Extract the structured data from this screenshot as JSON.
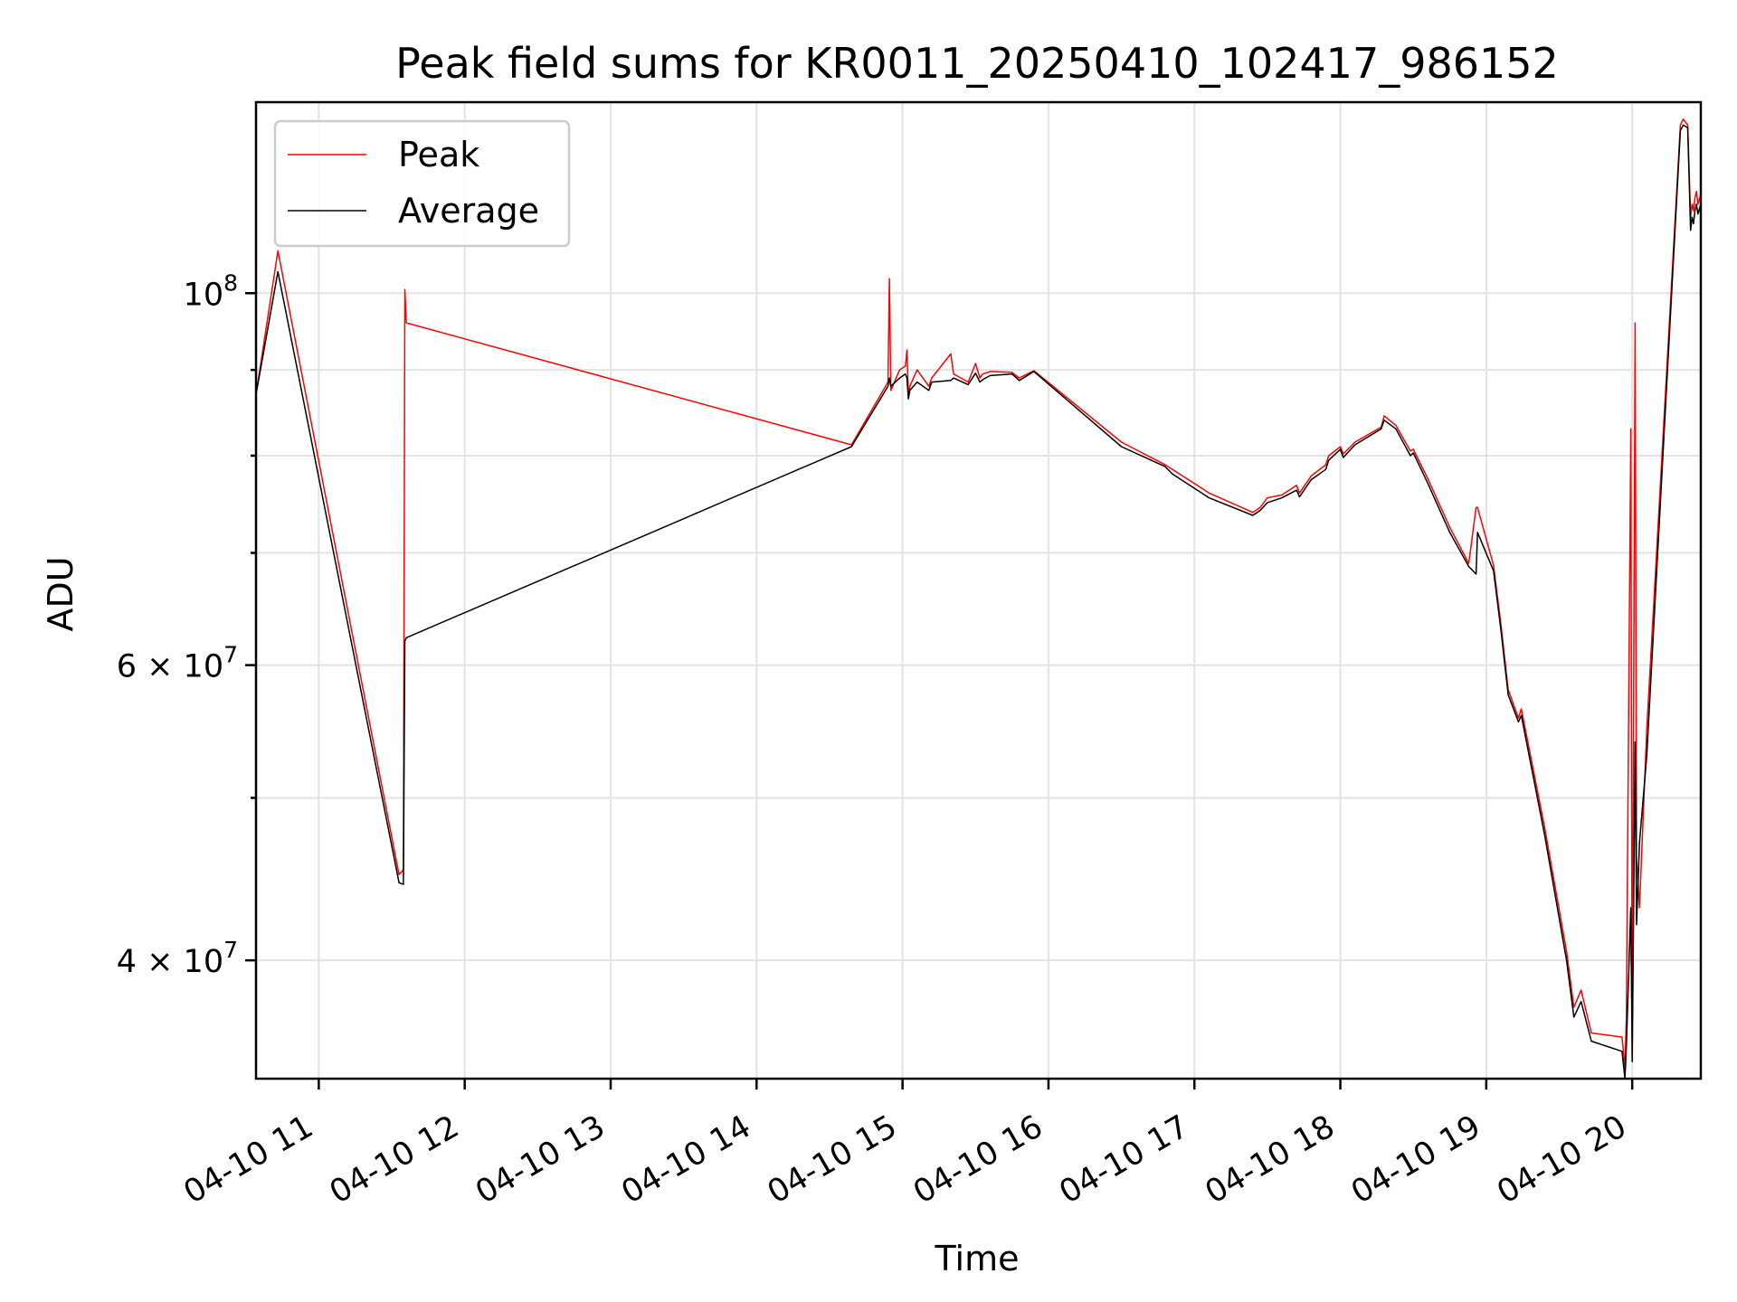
{
  "chart_data": {
    "type": "line",
    "title": "Peak field sums for KR0011_20250410_102417_986152",
    "xlabel": "Time",
    "ylabel": "ADU",
    "yscale": "log",
    "x_unit": "hours (clock time on 2025-04-10)",
    "xlim": [
      10.57,
      20.47
    ],
    "ylim": [
      34000000,
      130000000
    ],
    "grid": true,
    "legend_position": "upper left",
    "x_ticks": [
      {
        "value": 11,
        "label": "04-10 11"
      },
      {
        "value": 12,
        "label": "04-10 12"
      },
      {
        "value": 13,
        "label": "04-10 13"
      },
      {
        "value": 14,
        "label": "04-10 14"
      },
      {
        "value": 15,
        "label": "04-10 15"
      },
      {
        "value": 16,
        "label": "04-10 16"
      },
      {
        "value": 17,
        "label": "04-10 17"
      },
      {
        "value": 18,
        "label": "04-10 18"
      },
      {
        "value": 19,
        "label": "04-10 19"
      },
      {
        "value": 20,
        "label": "04-10 20"
      }
    ],
    "y_major_ticks": [
      {
        "value": 40000000,
        "base": "4 × 10",
        "exp": "7"
      },
      {
        "value": 60000000,
        "base": "6 × 10",
        "exp": "7"
      },
      {
        "value": 100000000,
        "base": "10",
        "exp": "8"
      }
    ],
    "y_minor_grid": [
      50000000,
      70000000,
      80000000,
      90000000
    ],
    "series": [
      {
        "name": "Peak",
        "color": "#ff0000",
        "x": [
          10.57,
          10.72,
          11.55,
          11.58,
          11.59,
          11.6,
          14.65,
          14.9,
          14.91,
          14.92,
          14.98,
          15.02,
          15.03,
          15.04,
          15.05,
          15.1,
          15.18,
          15.2,
          15.33,
          15.35,
          15.45,
          15.5,
          15.53,
          15.55,
          15.6,
          15.75,
          15.8,
          15.9,
          16.5,
          16.8,
          16.85,
          17.0,
          17.1,
          17.4,
          17.45,
          17.5,
          17.6,
          17.7,
          17.72,
          17.8,
          17.9,
          17.92,
          18.0,
          18.02,
          18.1,
          18.28,
          18.3,
          18.38,
          18.48,
          18.5,
          18.6,
          18.75,
          18.88,
          18.93,
          18.94,
          19.05,
          19.1,
          19.15,
          19.22,
          19.24,
          19.4,
          19.55,
          19.6,
          19.65,
          19.72,
          19.93,
          19.95,
          19.96,
          19.99,
          20.0,
          20.02,
          20.03,
          20.05,
          20.1,
          20.33,
          20.35,
          20.38,
          20.4,
          20.41,
          20.42,
          20.43,
          20.44,
          20.45,
          20.47
        ],
        "values": [
          87000000,
          106000000,
          45000000,
          45300000,
          100500000,
          96000000,
          81200000,
          88500000,
          102000000,
          87500000,
          90000000,
          90500000,
          92500000,
          87000000,
          88000000,
          90000000,
          88000000,
          89000000,
          92000000,
          89500000,
          88500000,
          90800000,
          89000000,
          89500000,
          89800000,
          89700000,
          89000000,
          89900000,
          81500000,
          79000000,
          78500000,
          77000000,
          76000000,
          74000000,
          74500000,
          75500000,
          75800000,
          76800000,
          76000000,
          77800000,
          79000000,
          80000000,
          81000000,
          80200000,
          81500000,
          83200000,
          84500000,
          83400000,
          80500000,
          80700000,
          77500000,
          72500000,
          69000000,
          74500000,
          74500000,
          68800000,
          63500000,
          58000000,
          55800000,
          56500000,
          48000000,
          40500000,
          37500000,
          38400000,
          36200000,
          36000000,
          34500000,
          37000000,
          83000000,
          35200000,
          96000000,
          46000000,
          43000000,
          55000000,
          126000000,
          127000000,
          126000000,
          111000000,
          113000000,
          112000000,
          114000000,
          115000000,
          113000000,
          114500000
        ]
      },
      {
        "name": "Average",
        "color": "#000000",
        "x": [
          10.57,
          10.72,
          11.55,
          11.58,
          11.59,
          11.6,
          14.65,
          14.9,
          14.91,
          14.92,
          14.98,
          15.02,
          15.03,
          15.04,
          15.05,
          15.1,
          15.18,
          15.2,
          15.33,
          15.35,
          15.45,
          15.5,
          15.53,
          15.55,
          15.6,
          15.75,
          15.8,
          15.9,
          16.5,
          16.8,
          16.85,
          17.0,
          17.1,
          17.4,
          17.45,
          17.5,
          17.6,
          17.7,
          17.72,
          17.8,
          17.9,
          17.92,
          18.0,
          18.02,
          18.1,
          18.28,
          18.3,
          18.38,
          18.48,
          18.5,
          18.6,
          18.75,
          18.88,
          18.93,
          18.94,
          19.05,
          19.1,
          19.15,
          19.22,
          19.24,
          19.4,
          19.55,
          19.6,
          19.65,
          19.72,
          19.93,
          19.95,
          19.96,
          19.99,
          20.0,
          20.02,
          20.03,
          20.05,
          20.1,
          20.33,
          20.35,
          20.38,
          20.4,
          20.41,
          20.42,
          20.43,
          20.44,
          20.45,
          20.47
        ],
        "values": [
          87000000,
          103000000,
          44500000,
          44400000,
          62000000,
          62300000,
          81000000,
          88000000,
          89000000,
          88000000,
          89000000,
          89500000,
          89000000,
          86500000,
          87500000,
          88500000,
          87500000,
          88500000,
          88700000,
          89000000,
          88200000,
          89600000,
          88500000,
          88800000,
          89300000,
          89500000,
          88700000,
          89800000,
          81000000,
          78800000,
          78000000,
          76500000,
          75500000,
          73700000,
          74200000,
          75000000,
          75500000,
          76300000,
          75600000,
          77400000,
          78500000,
          79500000,
          80700000,
          79800000,
          81200000,
          83000000,
          84000000,
          83000000,
          80000000,
          80300000,
          77000000,
          72000000,
          68700000,
          68000000,
          72000000,
          68300000,
          63000000,
          57600000,
          55500000,
          56000000,
          47500000,
          40000000,
          37000000,
          37800000,
          35800000,
          35300000,
          34000000,
          35500000,
          43000000,
          34800000,
          54000000,
          42000000,
          47000000,
          53000000,
          125000000,
          126000000,
          125500000,
          109000000,
          111000000,
          110000000,
          112000000,
          113000000,
          111500000,
          113000000
        ]
      }
    ]
  }
}
